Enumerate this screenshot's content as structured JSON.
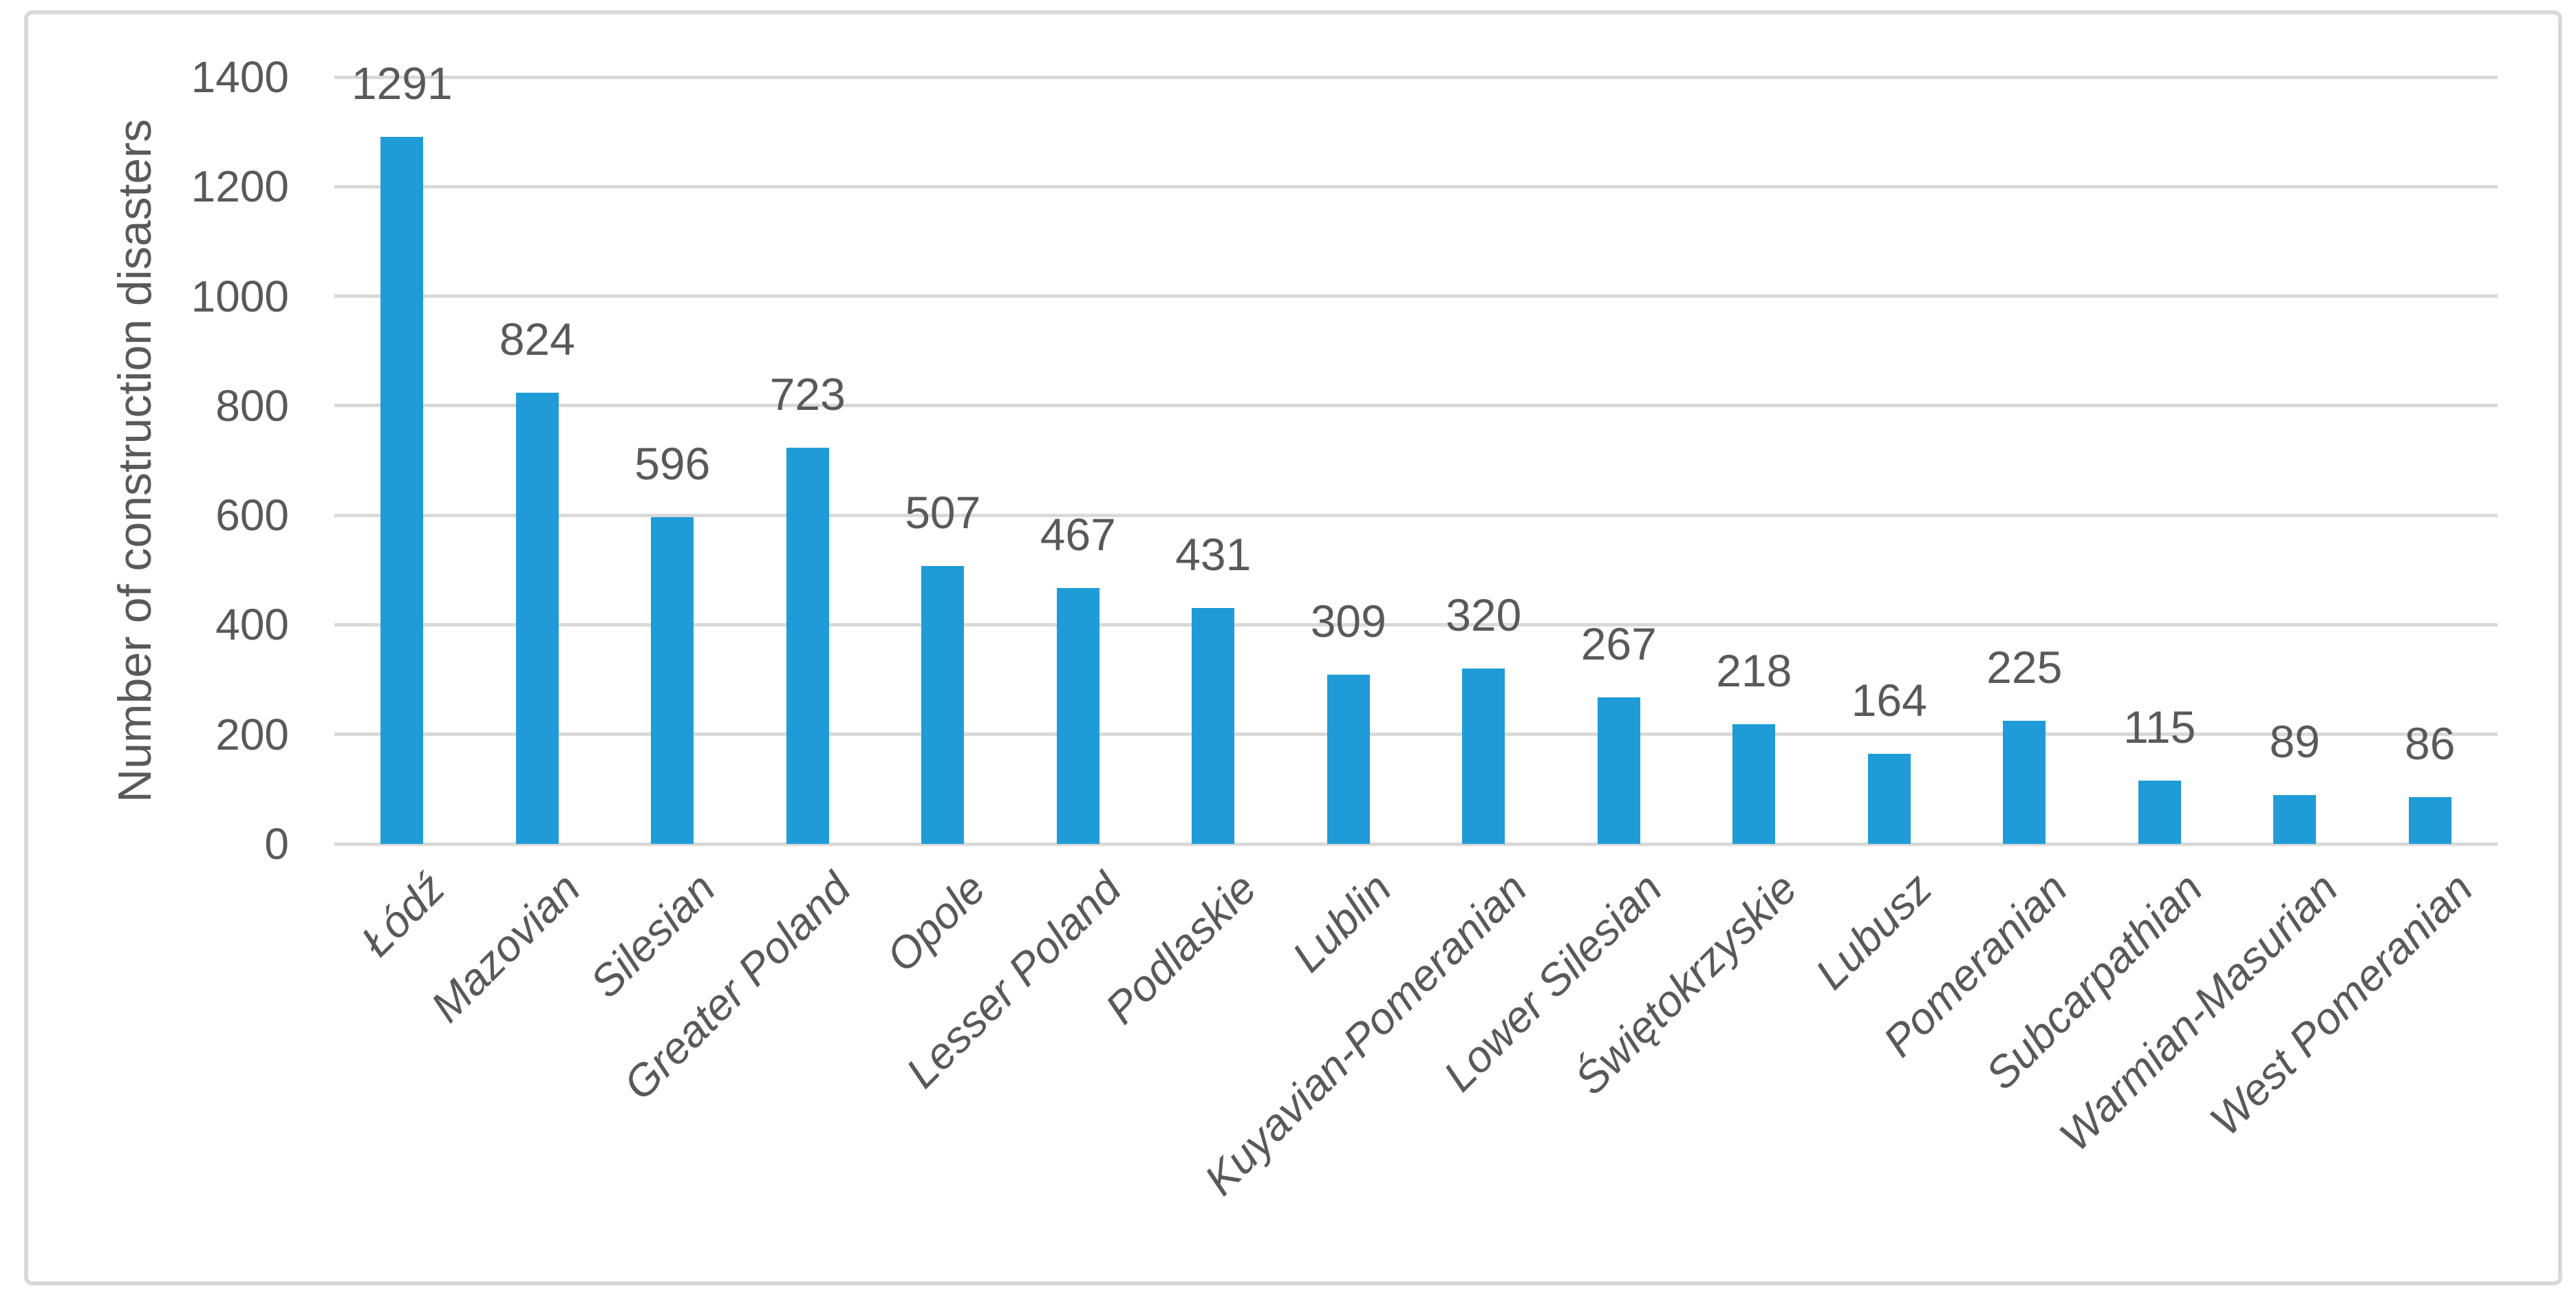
{
  "chart_data": {
    "type": "bar",
    "title": "",
    "ylabel": "Number of construction disasters",
    "categories": [
      "Łódź",
      "Mazovian",
      "Silesian",
      "Greater Poland",
      "Opole",
      "Lesser Poland",
      "Podlaskie",
      "Lublin",
      "Kuyavian-Pomeranian",
      "Lower Silesian",
      "Świętokrzyskie",
      "Lubusz",
      "Pomeranian",
      "Subcarpathian",
      "Warmian-Masurian",
      "West Pomeranian"
    ],
    "values": [
      1291,
      824,
      596,
      723,
      507,
      467,
      431,
      309,
      320,
      267,
      218,
      164,
      225,
      115,
      89,
      86
    ],
    "data_labels": [
      1291,
      824,
      596,
      723,
      507,
      467,
      431,
      309,
      320,
      267,
      218,
      164,
      225,
      115,
      89,
      86
    ],
    "ylim": [
      0,
      1400
    ],
    "yticks": [
      0,
      200,
      400,
      600,
      800,
      1000,
      1200,
      1400
    ],
    "grid": "horizontal",
    "legend": "none",
    "category_label_rotation_deg": 45,
    "category_label_style": "italic",
    "colors": {
      "bar": "#1F9CD7",
      "gridline": "#D9D9D9",
      "frame_border": "#D9D9D9",
      "text": "#595959",
      "background": "#FFFFFF"
    }
  }
}
